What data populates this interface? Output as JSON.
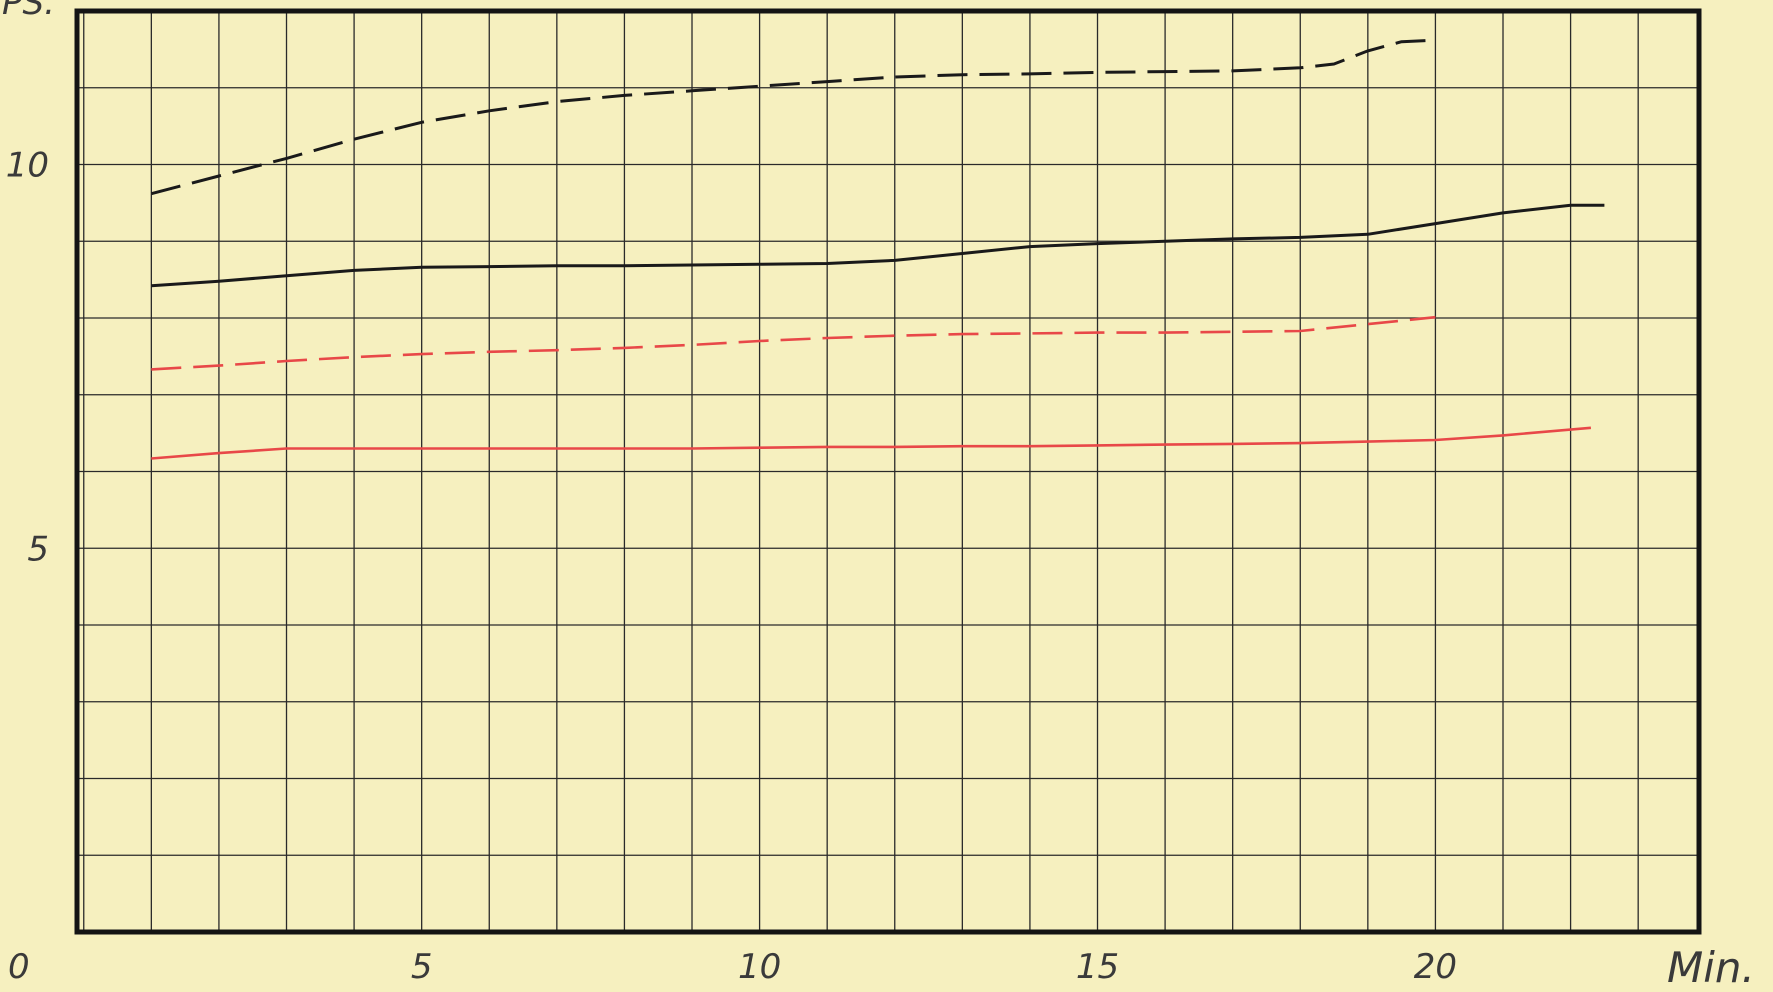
{
  "chart_data": {
    "type": "line",
    "ylabel": "PS.",
    "xlabel": "Min.",
    "x_ticks": [
      {
        "value": 0,
        "label": "0"
      },
      {
        "value": 5,
        "label": "5"
      },
      {
        "value": 10,
        "label": "10"
      },
      {
        "value": 15,
        "label": "15"
      },
      {
        "value": 20,
        "label": "20"
      }
    ],
    "y_ticks": [
      {
        "value": 5,
        "label": "5"
      },
      {
        "value": 10,
        "label": "10"
      }
    ],
    "xlim": [
      -0.1,
      23.9
    ],
    "ylim": [
      0,
      12
    ],
    "grid": true,
    "series": [
      {
        "color": "#1a1a1a",
        "dashed": true,
        "x": [
          1,
          2,
          3,
          4,
          5,
          6,
          7,
          8,
          9,
          10,
          11,
          12,
          13,
          14,
          15,
          16,
          17,
          18,
          18.5,
          19,
          19.5,
          20
        ],
        "y": [
          9.62,
          9.85,
          10.08,
          10.33,
          10.55,
          10.7,
          10.82,
          10.9,
          10.96,
          11.02,
          11.08,
          11.14,
          11.17,
          11.18,
          11.2,
          11.21,
          11.22,
          11.26,
          11.31,
          11.48,
          11.6,
          11.62
        ]
      },
      {
        "color": "#1a1a1a",
        "dashed": false,
        "x": [
          1,
          2,
          3,
          4,
          5,
          6,
          7,
          8,
          9,
          10,
          11,
          12,
          13,
          14,
          15,
          16,
          17,
          18,
          19,
          20,
          21,
          22,
          22.5
        ],
        "y": [
          8.42,
          8.48,
          8.55,
          8.62,
          8.66,
          8.67,
          8.68,
          8.68,
          8.69,
          8.7,
          8.71,
          8.75,
          8.84,
          8.93,
          8.97,
          9.0,
          9.03,
          9.05,
          9.09,
          9.23,
          9.37,
          9.47,
          9.47
        ]
      },
      {
        "color": "#e84848",
        "dashed": true,
        "x": [
          1,
          2,
          3,
          4,
          5,
          6,
          7,
          8,
          9,
          10,
          11,
          12,
          13,
          14,
          15,
          16,
          17,
          18,
          19,
          20
        ],
        "y": [
          7.33,
          7.38,
          7.44,
          7.49,
          7.53,
          7.56,
          7.58,
          7.61,
          7.65,
          7.7,
          7.74,
          7.77,
          7.79,
          7.8,
          7.81,
          7.81,
          7.82,
          7.83,
          7.92,
          8.01
        ]
      },
      {
        "color": "#e84848",
        "dashed": false,
        "x": [
          1,
          2,
          3,
          4,
          5,
          6,
          7,
          8,
          9,
          10,
          11,
          12,
          13,
          14,
          15,
          16,
          17,
          18,
          19,
          20,
          21,
          22.3
        ],
        "y": [
          6.17,
          6.24,
          6.3,
          6.3,
          6.3,
          6.3,
          6.3,
          6.3,
          6.3,
          6.31,
          6.32,
          6.32,
          6.33,
          6.33,
          6.34,
          6.35,
          6.36,
          6.37,
          6.39,
          6.41,
          6.47,
          6.57
        ]
      }
    ]
  }
}
